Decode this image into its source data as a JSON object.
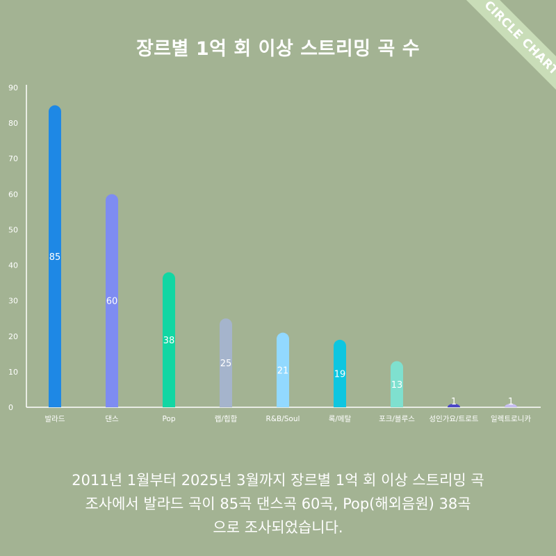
{
  "title": "장르별 1억 회 이상 스트리밍 곡 수",
  "ribbon": "CIRCLE CHART",
  "footer": [
    "2011년 1월부터 2025년 3월까지 장르별 1억 회 이상 스트리밍 곡",
    "조사에서 발라드 곡이 85곡  댄스곡 60곡, Pop(해외음원) 38곡",
    "으로 조사되었습니다."
  ],
  "chart_data": {
    "type": "bar",
    "categories": [
      "발라드",
      "댄스",
      "Pop",
      "랩/힙합",
      "R&B/Soul",
      "록/메탈",
      "포크/블루스",
      "성인가요/트로트",
      "일렉트로니카"
    ],
    "values": [
      85,
      60,
      38,
      25,
      21,
      19,
      13,
      1,
      1
    ],
    "colors": [
      "#1e88e5",
      "#7e8cf2",
      "#12d6a3",
      "#a5b4cc",
      "#92d9ff",
      "#0ec6e0",
      "#7fe0cf",
      "#4a46c6",
      "#c8bff0"
    ],
    "ylim": [
      0,
      90
    ],
    "yticks": [
      0,
      10,
      20,
      30,
      40,
      50,
      60,
      70,
      80,
      90
    ],
    "grid": false
  }
}
